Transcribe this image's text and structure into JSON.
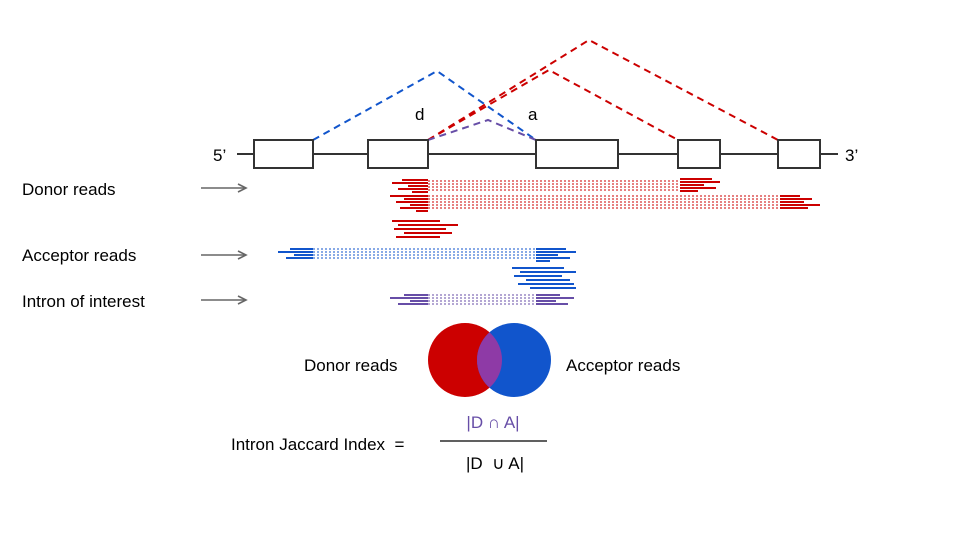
{
  "colors": {
    "donor": "#cc0000",
    "acceptor": "#1155cc",
    "intron": "#674ea7",
    "line": "#333333",
    "arrow": "#666666",
    "venn_donor": "#cc0000",
    "venn_acceptor": "#1155cc",
    "venn_overlap": "#8e3aa6"
  },
  "gene": {
    "five_prime": "5’",
    "three_prime": "3’",
    "donor_site_label": "d",
    "acceptor_site_label": "a"
  },
  "rows": {
    "donor_reads": "Donor reads",
    "acceptor_reads": "Acceptor reads",
    "intron_of_interest": "Intron of interest"
  },
  "venn": {
    "left_label": "Donor reads",
    "right_label": "Acceptor reads"
  },
  "formula": {
    "label": "Intron Jaccard Index  =",
    "numerator": "|D ∩ A|",
    "denominator": "|D  ∪ A|"
  }
}
